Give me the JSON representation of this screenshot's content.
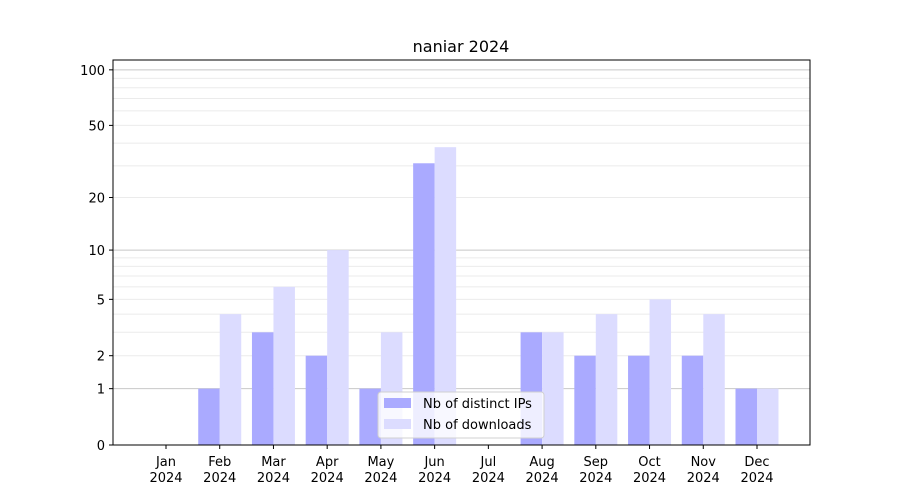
{
  "chart_data": {
    "type": "bar",
    "title": "naniar 2024",
    "xlabel": "",
    "ylabel": "",
    "y_scale": "symlog",
    "ylim": [
      0,
      113
    ],
    "yticks": [
      0,
      1,
      2,
      5,
      10,
      20,
      50,
      100
    ],
    "grid": "y major and minor",
    "legend_placement": "lower center",
    "categories": [
      "Jan\n2024",
      "Feb\n2024",
      "Mar\n2024",
      "Apr\n2024",
      "May\n2024",
      "Jun\n2024",
      "Jul\n2024",
      "Aug\n2024",
      "Sep\n2024",
      "Oct\n2024",
      "Nov\n2024",
      "Dec\n2024"
    ],
    "series": [
      {
        "name": "Nb of distinct IPs",
        "color": "#aaaaff",
        "values": [
          0,
          1,
          3,
          2,
          1,
          31,
          0,
          3,
          2,
          2,
          2,
          1
        ]
      },
      {
        "name": "Nb of downloads",
        "color": "#dcdcff",
        "values": [
          0,
          4,
          6,
          10,
          3,
          38,
          0,
          3,
          4,
          5,
          4,
          1
        ]
      }
    ]
  }
}
